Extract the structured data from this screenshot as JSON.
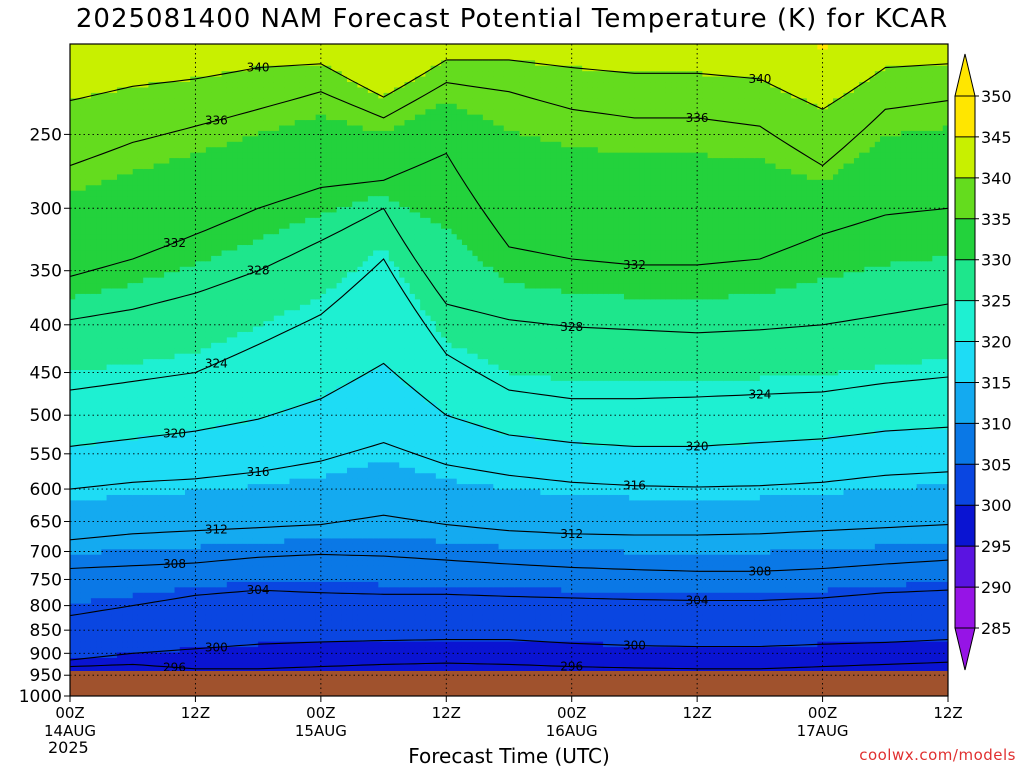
{
  "chart_data": {
    "type": "heatmap",
    "title": "2025081400 NAM Forecast Potential Temperature (K) for KCAR",
    "xlabel": "Forecast Time (UTC)",
    "ylabel": "",
    "year": "2025",
    "watermark": "coolwx.com/models",
    "x_ticks": [
      {
        "hour": 0,
        "label": "00Z",
        "sub": "14AUG"
      },
      {
        "hour": 12,
        "label": "12Z",
        "sub": ""
      },
      {
        "hour": 24,
        "label": "00Z",
        "sub": "15AUG"
      },
      {
        "hour": 36,
        "label": "12Z",
        "sub": ""
      },
      {
        "hour": 48,
        "label": "00Z",
        "sub": "16AUG"
      },
      {
        "hour": 60,
        "label": "12Z",
        "sub": ""
      },
      {
        "hour": 72,
        "label": "00Z",
        "sub": "17AUG"
      },
      {
        "hour": 84,
        "label": "12Z",
        "sub": ""
      }
    ],
    "xlim": [
      0,
      84
    ],
    "y_ticks": [
      250,
      300,
      350,
      400,
      450,
      500,
      550,
      600,
      650,
      700,
      750,
      800,
      850,
      900,
      950,
      1000
    ],
    "ylim": [
      1000,
      200
    ],
    "y_scale": "log",
    "grid": true,
    "colorbar": {
      "ticks": [
        350,
        345,
        340,
        335,
        330,
        325,
        320,
        315,
        310,
        305,
        300,
        295,
        290,
        285
      ],
      "levels": [
        {
          "min": 345,
          "max": 350,
          "color": "#ffe600"
        },
        {
          "min": 340,
          "max": 345,
          "color": "#c8f000"
        },
        {
          "min": 335,
          "max": 340,
          "color": "#64dc1e"
        },
        {
          "min": 330,
          "max": 335,
          "color": "#23d23c"
        },
        {
          "min": 325,
          "max": 330,
          "color": "#1ee68c"
        },
        {
          "min": 320,
          "max": 325,
          "color": "#1ef0d2"
        },
        {
          "min": 315,
          "max": 320,
          "color": "#1edcf5"
        },
        {
          "min": 310,
          "max": 315,
          "color": "#14aaf0"
        },
        {
          "min": 305,
          "max": 310,
          "color": "#0a78e6"
        },
        {
          "min": 300,
          "max": 305,
          "color": "#0a46e1"
        },
        {
          "min": 295,
          "max": 300,
          "color": "#0a14d2"
        },
        {
          "min": 290,
          "max": 295,
          "color": "#5a14e1"
        },
        {
          "min": 285,
          "max": 290,
          "color": "#9614e6"
        }
      ]
    },
    "contours": [
      {
        "label": "296",
        "values": [
          [
            0,
            930
          ],
          [
            6,
            925
          ],
          [
            12,
            935
          ],
          [
            18,
            935
          ],
          [
            24,
            930
          ],
          [
            30,
            925
          ],
          [
            36,
            922
          ],
          [
            42,
            925
          ],
          [
            48,
            930
          ],
          [
            54,
            933
          ],
          [
            60,
            935
          ],
          [
            66,
            935
          ],
          [
            72,
            930
          ],
          [
            78,
            925
          ],
          [
            84,
            920
          ]
        ]
      },
      {
        "label": "300",
        "values": [
          [
            0,
            915
          ],
          [
            6,
            900
          ],
          [
            12,
            890
          ],
          [
            18,
            880
          ],
          [
            24,
            875
          ],
          [
            30,
            872
          ],
          [
            36,
            870
          ],
          [
            42,
            870
          ],
          [
            48,
            878
          ],
          [
            54,
            883
          ],
          [
            60,
            885
          ],
          [
            66,
            885
          ],
          [
            72,
            880
          ],
          [
            78,
            876
          ],
          [
            84,
            870
          ]
        ]
      },
      {
        "label": "304",
        "values": [
          [
            0,
            820
          ],
          [
            6,
            800
          ],
          [
            12,
            780
          ],
          [
            18,
            770
          ],
          [
            24,
            775
          ],
          [
            30,
            778
          ],
          [
            36,
            778
          ],
          [
            42,
            782
          ],
          [
            48,
            785
          ],
          [
            54,
            788
          ],
          [
            60,
            790
          ],
          [
            66,
            790
          ],
          [
            72,
            785
          ],
          [
            78,
            775
          ],
          [
            84,
            770
          ]
        ]
      },
      {
        "label": "308",
        "values": [
          [
            0,
            730
          ],
          [
            6,
            725
          ],
          [
            12,
            720
          ],
          [
            18,
            710
          ],
          [
            24,
            705
          ],
          [
            30,
            708
          ],
          [
            36,
            715
          ],
          [
            42,
            722
          ],
          [
            48,
            728
          ],
          [
            54,
            732
          ],
          [
            60,
            735
          ],
          [
            66,
            735
          ],
          [
            72,
            730
          ],
          [
            78,
            722
          ],
          [
            84,
            715
          ]
        ]
      },
      {
        "label": "312",
        "values": [
          [
            0,
            680
          ],
          [
            6,
            670
          ],
          [
            12,
            665
          ],
          [
            18,
            660
          ],
          [
            24,
            655
          ],
          [
            30,
            640
          ],
          [
            36,
            655
          ],
          [
            42,
            665
          ],
          [
            48,
            670
          ],
          [
            54,
            672
          ],
          [
            60,
            672
          ],
          [
            66,
            670
          ],
          [
            72,
            665
          ],
          [
            78,
            660
          ],
          [
            84,
            655
          ]
        ]
      },
      {
        "label": "316",
        "values": [
          [
            0,
            600
          ],
          [
            6,
            590
          ],
          [
            12,
            585
          ],
          [
            18,
            575
          ],
          [
            24,
            560
          ],
          [
            30,
            535
          ],
          [
            36,
            565
          ],
          [
            42,
            580
          ],
          [
            48,
            590
          ],
          [
            54,
            595
          ],
          [
            60,
            597
          ],
          [
            66,
            595
          ],
          [
            72,
            590
          ],
          [
            78,
            580
          ],
          [
            84,
            575
          ]
        ]
      },
      {
        "label": "320",
        "values": [
          [
            0,
            540
          ],
          [
            6,
            530
          ],
          [
            12,
            520
          ],
          [
            18,
            505
          ],
          [
            24,
            480
          ],
          [
            30,
            440
          ],
          [
            36,
            500
          ],
          [
            42,
            525
          ],
          [
            48,
            535
          ],
          [
            54,
            540
          ],
          [
            60,
            540
          ],
          [
            66,
            535
          ],
          [
            72,
            530
          ],
          [
            78,
            520
          ],
          [
            84,
            515
          ]
        ]
      },
      {
        "label": "324",
        "values": [
          [
            0,
            470
          ],
          [
            6,
            460
          ],
          [
            12,
            450
          ],
          [
            18,
            420
          ],
          [
            24,
            390
          ],
          [
            30,
            340
          ],
          [
            36,
            430
          ],
          [
            42,
            470
          ],
          [
            48,
            480
          ],
          [
            54,
            480
          ],
          [
            60,
            478
          ],
          [
            66,
            475
          ],
          [
            72,
            472
          ],
          [
            78,
            462
          ],
          [
            84,
            455
          ]
        ]
      },
      {
        "label": "328",
        "values": [
          [
            0,
            395
          ],
          [
            6,
            385
          ],
          [
            12,
            370
          ],
          [
            18,
            350
          ],
          [
            24,
            325
          ],
          [
            30,
            300
          ],
          [
            36,
            380
          ],
          [
            42,
            395
          ],
          [
            48,
            402
          ],
          [
            54,
            405
          ],
          [
            60,
            408
          ],
          [
            66,
            405
          ],
          [
            72,
            400
          ],
          [
            78,
            390
          ],
          [
            84,
            380
          ]
        ]
      },
      {
        "label": "332",
        "values": [
          [
            0,
            355
          ],
          [
            6,
            340
          ],
          [
            12,
            320
          ],
          [
            18,
            300
          ],
          [
            24,
            285
          ],
          [
            30,
            280
          ],
          [
            36,
            262
          ],
          [
            42,
            330
          ],
          [
            48,
            340
          ],
          [
            54,
            345
          ],
          [
            60,
            345
          ],
          [
            66,
            340
          ],
          [
            72,
            320
          ],
          [
            78,
            305
          ],
          [
            84,
            300
          ]
        ]
      },
      {
        "label": "336",
        "values": [
          [
            0,
            270
          ],
          [
            6,
            255
          ],
          [
            12,
            245
          ],
          [
            18,
            235
          ],
          [
            24,
            225
          ],
          [
            30,
            240
          ],
          [
            36,
            220
          ],
          [
            42,
            225
          ],
          [
            48,
            235
          ],
          [
            54,
            240
          ],
          [
            60,
            240
          ],
          [
            66,
            245
          ],
          [
            72,
            270
          ],
          [
            78,
            235
          ],
          [
            84,
            230
          ]
        ]
      },
      {
        "label": "340",
        "values": [
          [
            0,
            230
          ],
          [
            6,
            222
          ],
          [
            12,
            218
          ],
          [
            18,
            212
          ],
          [
            24,
            210
          ],
          [
            30,
            228
          ],
          [
            36,
            208
          ],
          [
            42,
            208
          ],
          [
            48,
            212
          ],
          [
            54,
            215
          ],
          [
            60,
            215
          ],
          [
            66,
            218
          ],
          [
            72,
            235
          ],
          [
            78,
            212
          ],
          [
            84,
            210
          ]
        ]
      }
    ]
  }
}
